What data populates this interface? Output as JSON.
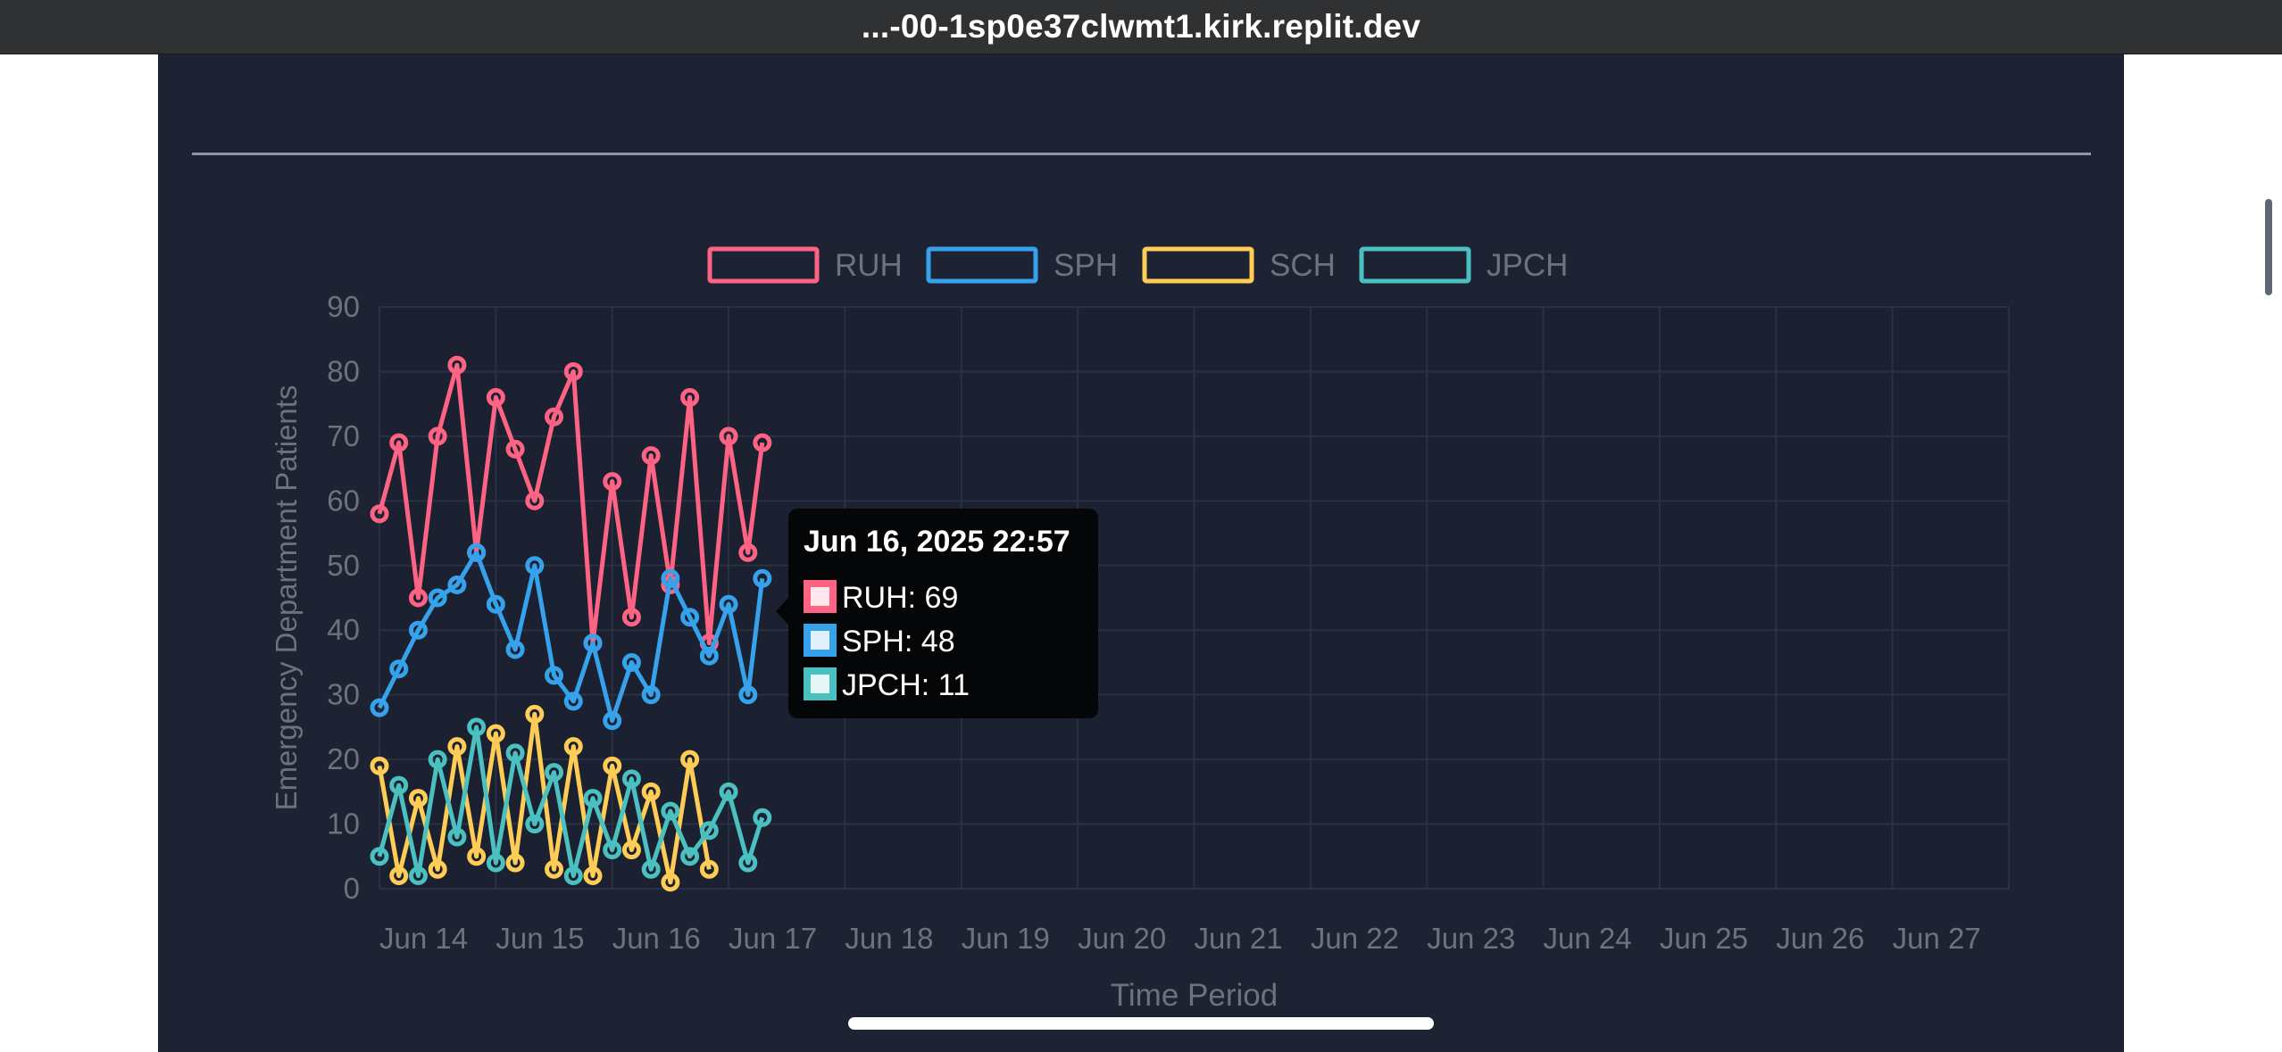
{
  "browser": {
    "url": "...-00-1sp0e37clwmt1.kirk.replit.dev"
  },
  "chart_data": {
    "type": "line",
    "ylabel": "Emergency Department Patients",
    "xlabel": "Time Period",
    "ylim": [
      0,
      90
    ],
    "y_ticks": [
      0,
      10,
      20,
      30,
      40,
      50,
      60,
      70,
      80,
      90
    ],
    "x_ticks": [
      "Jun 14",
      "Jun 15",
      "Jun 16",
      "Jun 17",
      "Jun 18",
      "Jun 19",
      "Jun 20",
      "Jun 21",
      "Jun 22",
      "Jun 23",
      "Jun 24",
      "Jun 25",
      "Jun 26",
      "Jun 27"
    ],
    "x_range_days": [
      "2025-06-13T16:00",
      "2025-06-27T16:00"
    ],
    "grid": true,
    "legend_position": "top-center",
    "series": [
      {
        "name": "RUH",
        "color": "#ff6384",
        "x": [
          "2025-06-13T16:00",
          "2025-06-13T20:00",
          "2025-06-14T00:00",
          "2025-06-14T04:00",
          "2025-06-14T08:00",
          "2025-06-14T12:00",
          "2025-06-14T16:00",
          "2025-06-14T20:00",
          "2025-06-15T00:00",
          "2025-06-15T04:00",
          "2025-06-15T08:00",
          "2025-06-15T12:00",
          "2025-06-15T16:00",
          "2025-06-15T20:00",
          "2025-06-16T00:00",
          "2025-06-16T04:00",
          "2025-06-16T08:00",
          "2025-06-16T12:00",
          "2025-06-16T16:00",
          "2025-06-16T20:00",
          "2025-06-16T22:57"
        ],
        "values": [
          58,
          69,
          45,
          70,
          81,
          52,
          76,
          68,
          60,
          73,
          80,
          38,
          63,
          42,
          67,
          47,
          76,
          38,
          70,
          52,
          69
        ]
      },
      {
        "name": "SPH",
        "color": "#36a2eb",
        "x": [
          "2025-06-13T16:00",
          "2025-06-13T20:00",
          "2025-06-14T00:00",
          "2025-06-14T04:00",
          "2025-06-14T08:00",
          "2025-06-14T12:00",
          "2025-06-14T16:00",
          "2025-06-14T20:00",
          "2025-06-15T00:00",
          "2025-06-15T04:00",
          "2025-06-15T08:00",
          "2025-06-15T12:00",
          "2025-06-15T16:00",
          "2025-06-15T20:00",
          "2025-06-16T00:00",
          "2025-06-16T04:00",
          "2025-06-16T08:00",
          "2025-06-16T12:00",
          "2025-06-16T16:00",
          "2025-06-16T20:00",
          "2025-06-16T22:57"
        ],
        "values": [
          28,
          34,
          40,
          45,
          47,
          52,
          44,
          37,
          50,
          33,
          29,
          38,
          26,
          35,
          30,
          48,
          42,
          36,
          44,
          30,
          48
        ]
      },
      {
        "name": "SCH",
        "color": "#ffcd56",
        "x": [
          "2025-06-13T16:00",
          "2025-06-13T20:00",
          "2025-06-14T00:00",
          "2025-06-14T04:00",
          "2025-06-14T08:00",
          "2025-06-14T12:00",
          "2025-06-14T16:00",
          "2025-06-14T20:00",
          "2025-06-15T00:00",
          "2025-06-15T04:00",
          "2025-06-15T08:00",
          "2025-06-15T12:00",
          "2025-06-15T16:00",
          "2025-06-15T20:00",
          "2025-06-16T00:00",
          "2025-06-16T04:00",
          "2025-06-16T08:00",
          "2025-06-16T12:00"
        ],
        "values": [
          19,
          2,
          14,
          3,
          22,
          5,
          24,
          4,
          27,
          3,
          22,
          2,
          19,
          6,
          15,
          1,
          20,
          3
        ]
      },
      {
        "name": "JPCH",
        "color": "#4bc0c0",
        "x": [
          "2025-06-13T16:00",
          "2025-06-13T20:00",
          "2025-06-14T00:00",
          "2025-06-14T04:00",
          "2025-06-14T08:00",
          "2025-06-14T12:00",
          "2025-06-14T16:00",
          "2025-06-14T20:00",
          "2025-06-15T00:00",
          "2025-06-15T04:00",
          "2025-06-15T08:00",
          "2025-06-15T12:00",
          "2025-06-15T16:00",
          "2025-06-15T20:00",
          "2025-06-16T00:00",
          "2025-06-16T04:00",
          "2025-06-16T08:00",
          "2025-06-16T12:00",
          "2025-06-16T16:00",
          "2025-06-16T20:00",
          "2025-06-16T22:57"
        ],
        "values": [
          5,
          16,
          2,
          20,
          8,
          25,
          4,
          21,
          10,
          18,
          2,
          14,
          6,
          17,
          3,
          12,
          5,
          9,
          15,
          4,
          11
        ]
      }
    ],
    "tooltip": {
      "title": "Jun 16, 2025 22:57",
      "items": [
        {
          "label": "RUH: 69",
          "color": "#ff6384"
        },
        {
          "label": "SPH: 48",
          "color": "#36a2eb"
        },
        {
          "label": "JPCH: 11",
          "color": "#4bc0c0"
        }
      ]
    }
  },
  "colors": {
    "page_bg": "#1d2333",
    "grid": "#2a3142",
    "text_muted": "#6b7280",
    "tooltip_bg": "#050608"
  }
}
